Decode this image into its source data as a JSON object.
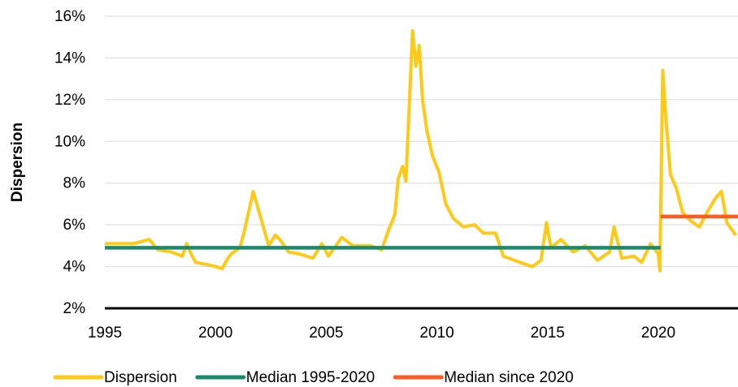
{
  "chart_data": {
    "type": "line",
    "y_label": "Dispersion",
    "xlim": [
      1995,
      2023.6
    ],
    "xticks": [
      1995,
      2000,
      2005,
      2010,
      2015,
      2020
    ],
    "ylim": [
      2,
      16
    ],
    "yticks": [
      {
        "value": 2,
        "label": "2%"
      },
      {
        "value": 4,
        "label": "4%"
      },
      {
        "value": 6,
        "label": "6%"
      },
      {
        "value": 8,
        "label": "8%"
      },
      {
        "value": 10,
        "label": "10%"
      },
      {
        "value": 12,
        "label": "12%"
      },
      {
        "value": 14,
        "label": "14%"
      },
      {
        "value": 16,
        "label": "16%"
      }
    ],
    "grid": true,
    "legend": "bottom",
    "series": [
      {
        "name": "Dispersion",
        "color": "#ffc917",
        "x": [
          1995,
          1996.3,
          1997,
          1997.4,
          1998,
          1998.5,
          1998.7,
          1998.9,
          1999.1,
          1999.6,
          2000,
          2000.3,
          2000.5,
          2000.7,
          2001.1,
          2001.3,
          2001.7,
          2002,
          2002.4,
          2002.7,
          2002.9,
          2003.3,
          2003.8,
          2004.4,
          2004.8,
          2005.1,
          2005.7,
          2006.2,
          2007,
          2007.5,
          2007.8,
          2008.1,
          2008.25,
          2008.45,
          2008.6,
          2008.9,
          2009.05,
          2009.2,
          2009.35,
          2009.55,
          2009.8,
          2010.1,
          2010.4,
          2010.75,
          2011.2,
          2011.7,
          2012.1,
          2012.65,
          2013,
          2013.75,
          2014.3,
          2014.7,
          2014.95,
          2015.15,
          2015.6,
          2016.15,
          2016.7,
          2017.25,
          2017.8,
          2018,
          2018.35,
          2018.9,
          2019.25,
          2019.65,
          2020,
          2020.07,
          2020.2,
          2020.35,
          2020.55,
          2020.8,
          2021.1,
          2021.45,
          2021.85,
          2022.2,
          2022.6,
          2022.85,
          2023.1,
          2023.5
        ],
        "values": [
          5.1,
          5.1,
          5.3,
          4.8,
          4.7,
          4.5,
          5.1,
          4.6,
          4.2,
          4.1,
          4.0,
          3.9,
          4.3,
          4.6,
          4.9,
          5.7,
          7.6,
          6.5,
          5.0,
          5.5,
          5.3,
          4.7,
          4.6,
          4.4,
          5.1,
          4.5,
          5.4,
          5.0,
          5.0,
          4.8,
          5.7,
          6.5,
          8.2,
          8.8,
          8.1,
          15.3,
          13.6,
          14.6,
          12.0,
          10.5,
          9.3,
          8.5,
          7.0,
          6.3,
          5.9,
          6.0,
          5.6,
          5.6,
          4.5,
          4.2,
          4.0,
          4.3,
          6.1,
          4.9,
          5.3,
          4.7,
          5.0,
          4.3,
          4.7,
          5.9,
          4.4,
          4.5,
          4.2,
          5.1,
          4.6,
          3.8,
          13.4,
          11.0,
          8.4,
          7.8,
          6.6,
          6.2,
          5.9,
          6.6,
          7.3,
          7.6,
          6.1,
          5.5
        ]
      },
      {
        "name": "Median 1995-2020",
        "color": "#1a8a6a",
        "x": [
          1995,
          2020.1
        ],
        "values": [
          4.9,
          4.9
        ]
      },
      {
        "name": "Median since 2020",
        "color": "#ff5a1f",
        "x": [
          2020.1,
          2023.6
        ],
        "values": [
          6.4,
          6.4
        ]
      }
    ]
  }
}
